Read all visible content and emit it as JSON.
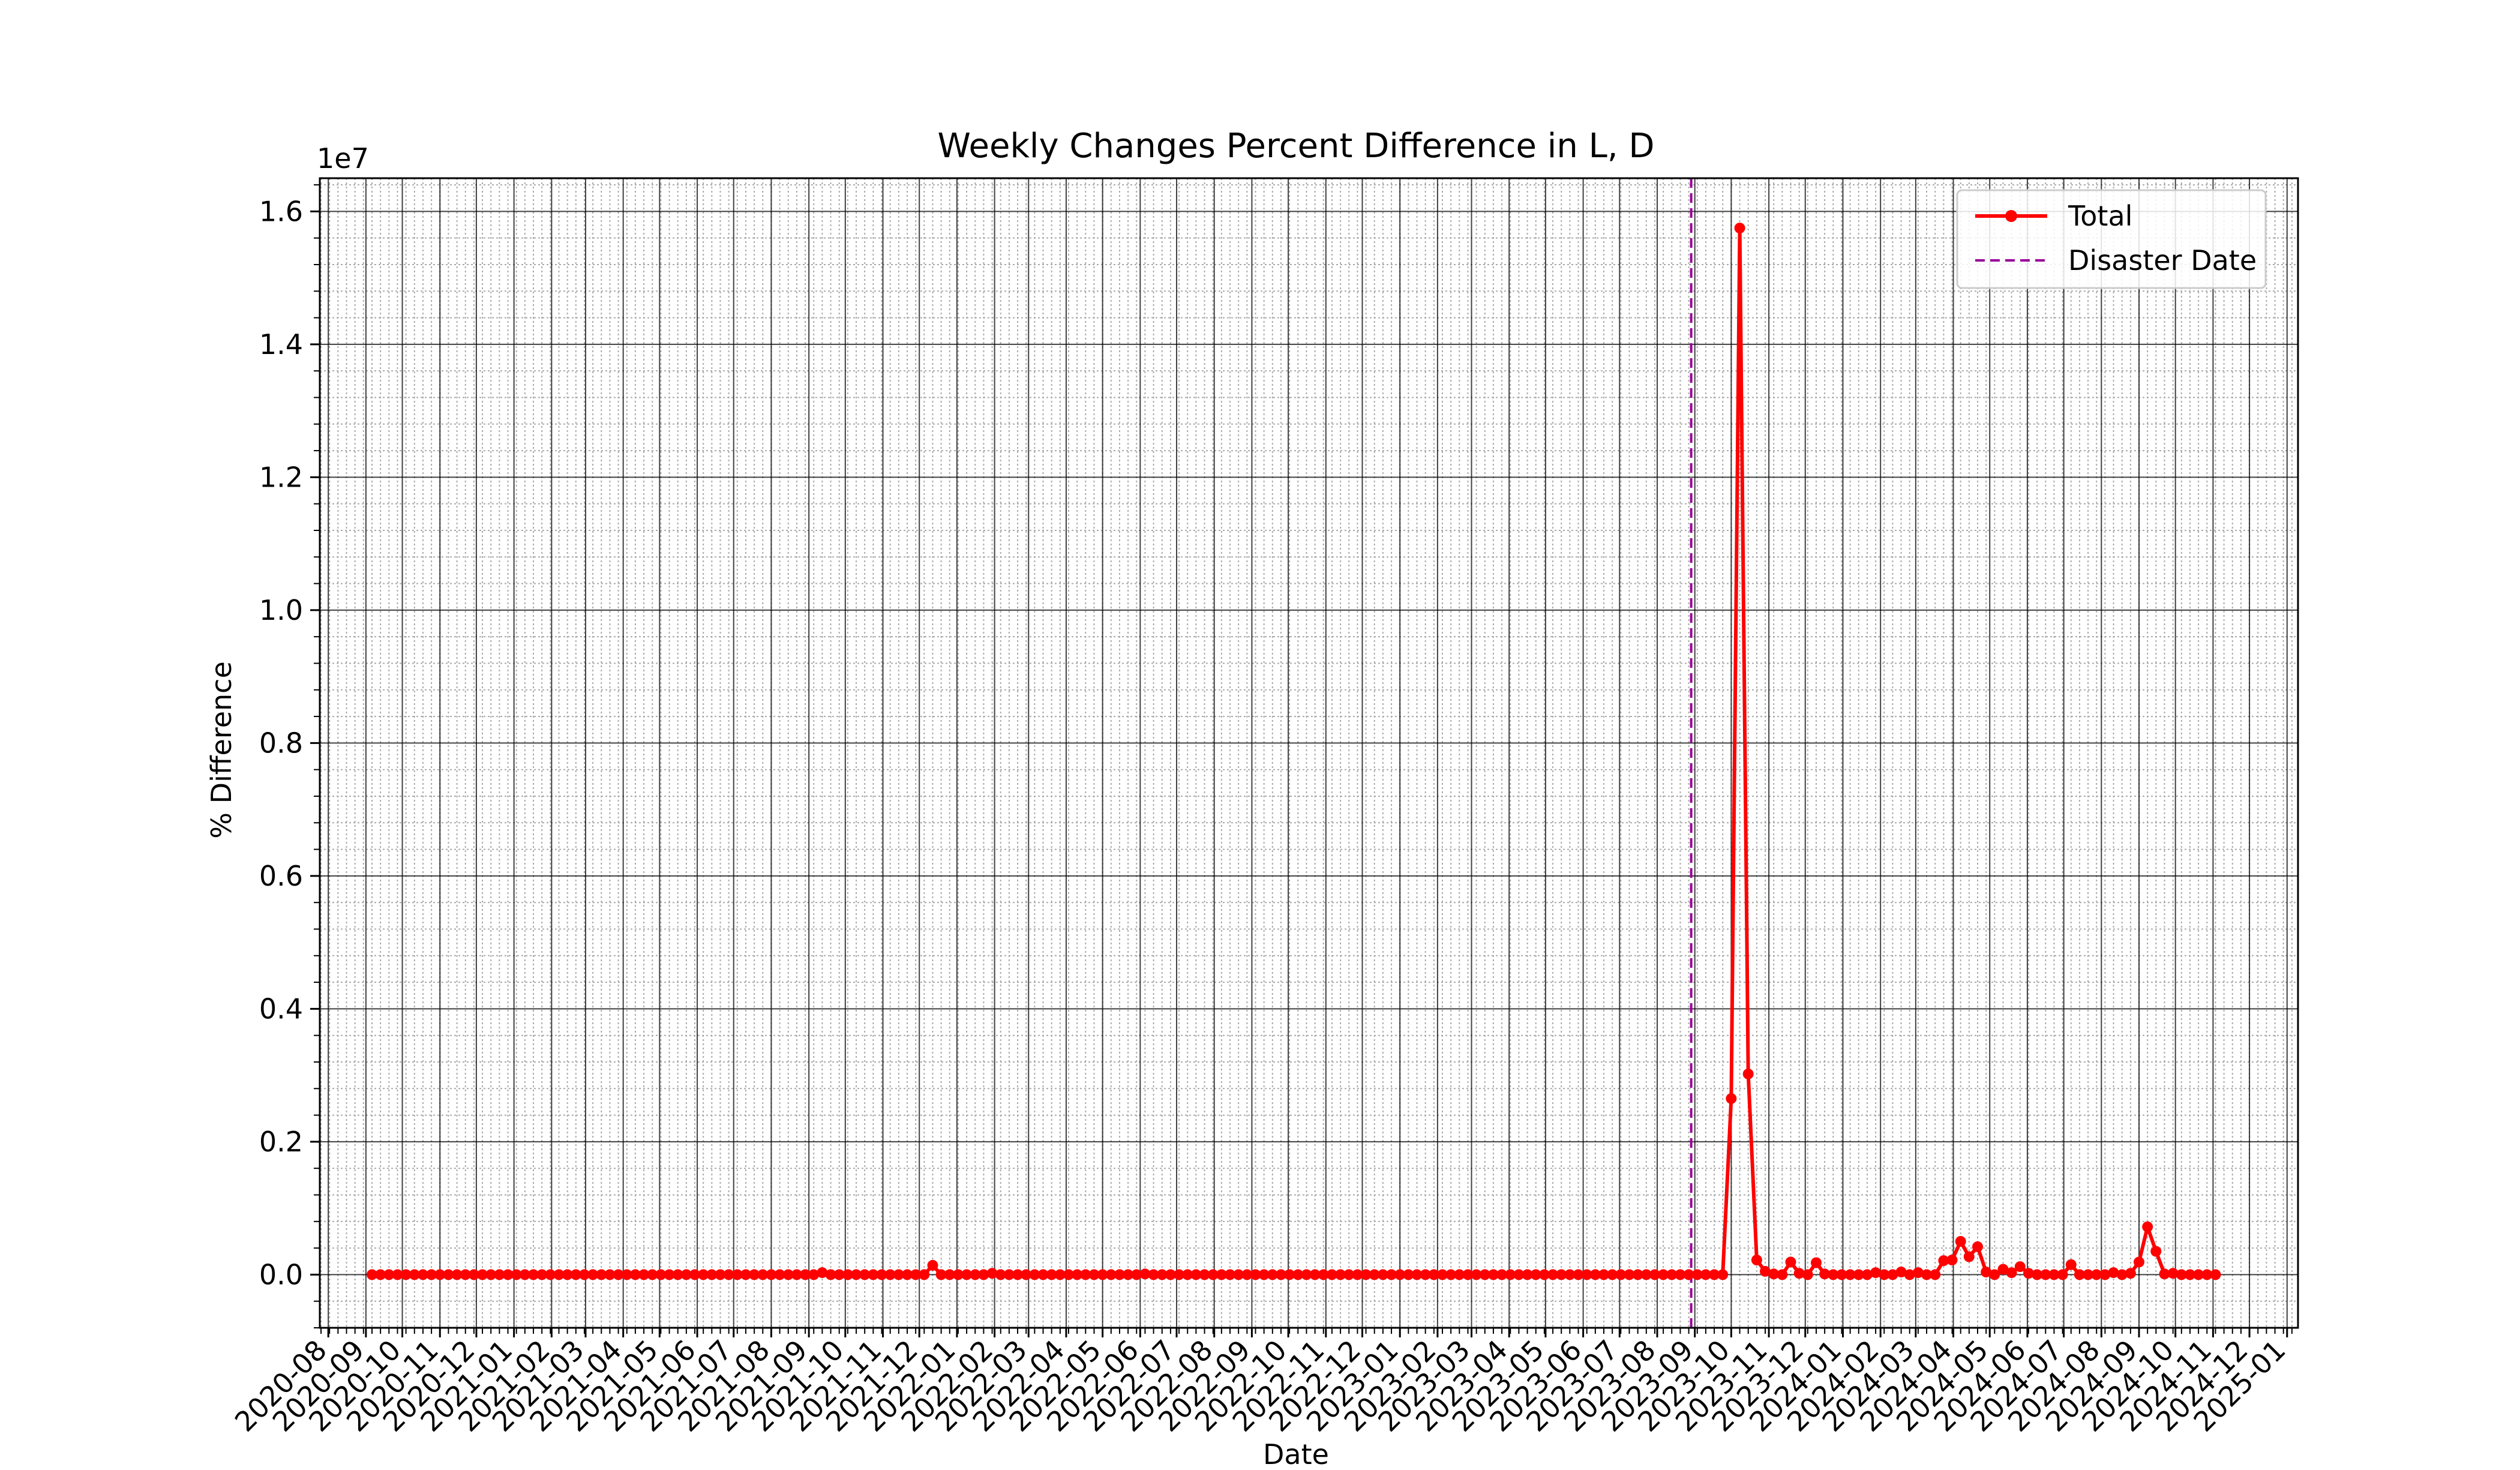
{
  "chart_data": {
    "type": "line",
    "title": "Weekly Changes Percent Difference in L, D",
    "xlabel": "Date",
    "ylabel": "% Difference",
    "y_offset_text": "1e7",
    "ylim": [
      -0.08,
      1.65
    ],
    "y_scale": 10000000,
    "xlim": [
      "2020-07-25",
      "2025-01-10"
    ],
    "y_ticks": [
      0.0,
      0.2,
      0.4,
      0.6,
      0.8,
      1.0,
      1.2,
      1.4,
      1.6
    ],
    "y_tick_labels": [
      "0.0",
      "0.2",
      "0.4",
      "0.6",
      "0.8",
      "1.0",
      "1.2",
      "1.4",
      "1.6"
    ],
    "x_tick_labels": [
      "2020-08",
      "2020-09",
      "2020-10",
      "2020-11",
      "2020-12",
      "2021-01",
      "2021-02",
      "2021-03",
      "2021-04",
      "2021-05",
      "2021-06",
      "2021-07",
      "2021-08",
      "2021-09",
      "2021-10",
      "2021-11",
      "2021-12",
      "2022-01",
      "2022-02",
      "2022-03",
      "2022-04",
      "2022-05",
      "2022-06",
      "2022-07",
      "2022-08",
      "2022-09",
      "2022-10",
      "2022-11",
      "2022-12",
      "2023-01",
      "2023-02",
      "2023-03",
      "2023-04",
      "2023-05",
      "2023-06",
      "2023-07",
      "2023-08",
      "2023-09",
      "2023-10",
      "2023-11",
      "2023-12",
      "2024-01",
      "2024-02",
      "2024-03",
      "2024-04",
      "2024-05",
      "2024-06",
      "2024-07",
      "2024-08",
      "2024-09",
      "2024-10",
      "2024-11",
      "2024-12",
      "2025-01"
    ],
    "grid": true,
    "minor_grid": true,
    "legend_position": "top-right",
    "series": [
      {
        "name": "Total",
        "color": "#ff0000",
        "marker": "circle",
        "start_date": "2020-09-06",
        "interval_days": 7,
        "values": [
          0,
          0,
          0,
          0,
          0,
          0,
          0,
          0,
          0,
          0,
          0,
          0,
          0,
          0,
          0,
          0,
          0,
          0,
          0,
          0,
          0,
          0,
          0,
          0,
          0,
          0,
          0,
          0,
          0,
          0,
          0,
          0,
          0,
          0,
          0,
          0,
          0,
          0,
          0,
          0,
          0,
          0,
          0,
          0,
          0,
          0,
          0,
          0,
          0,
          0,
          0,
          0,
          0,
          0.003,
          0,
          0,
          0,
          0,
          0,
          0,
          0,
          0,
          0,
          0,
          0,
          0,
          0.014,
          0,
          0,
          0,
          0,
          0,
          0,
          0.002,
          0,
          0,
          0,
          0,
          0,
          0,
          0,
          0,
          0,
          0,
          0,
          0,
          0,
          0,
          0,
          0,
          0,
          0.001,
          0,
          0,
          0,
          0,
          0,
          0,
          0,
          0,
          0,
          0,
          0,
          0,
          0,
          0,
          0,
          0,
          0,
          0,
          0,
          0,
          0,
          0,
          0,
          0,
          0,
          0,
          0,
          0,
          0,
          0,
          0,
          0,
          0,
          0,
          0,
          0,
          0,
          0,
          0,
          0,
          0,
          0,
          0,
          0,
          0,
          0,
          0,
          0,
          0,
          0,
          0,
          0,
          0,
          0,
          0,
          0,
          0,
          0,
          0,
          0,
          0,
          0,
          0,
          0,
          0,
          0,
          0,
          0,
          0.265,
          1.575,
          0.302,
          0.022,
          0.005,
          0.001,
          0,
          0.019,
          0.002,
          0,
          0.018,
          0.001,
          0,
          0,
          0,
          0,
          0,
          0.003,
          0,
          0,
          0.004,
          0,
          0.003,
          0,
          0,
          0.021,
          0.022,
          0.05,
          0.027,
          0.042,
          0.004,
          0,
          0.008,
          0.003,
          0.012,
          0.002,
          0,
          0,
          0,
          0,
          0.015,
          0,
          0,
          0,
          0,
          0.003,
          0,
          0.002,
          0.019,
          0.072,
          0.035,
          0.001,
          0.002,
          0,
          0,
          0,
          0,
          0
        ]
      }
    ],
    "annotations": [
      {
        "type": "vline",
        "name": "Disaster Date",
        "x": "2023-08-29",
        "color": "#990099",
        "style": "dashed"
      }
    ]
  }
}
